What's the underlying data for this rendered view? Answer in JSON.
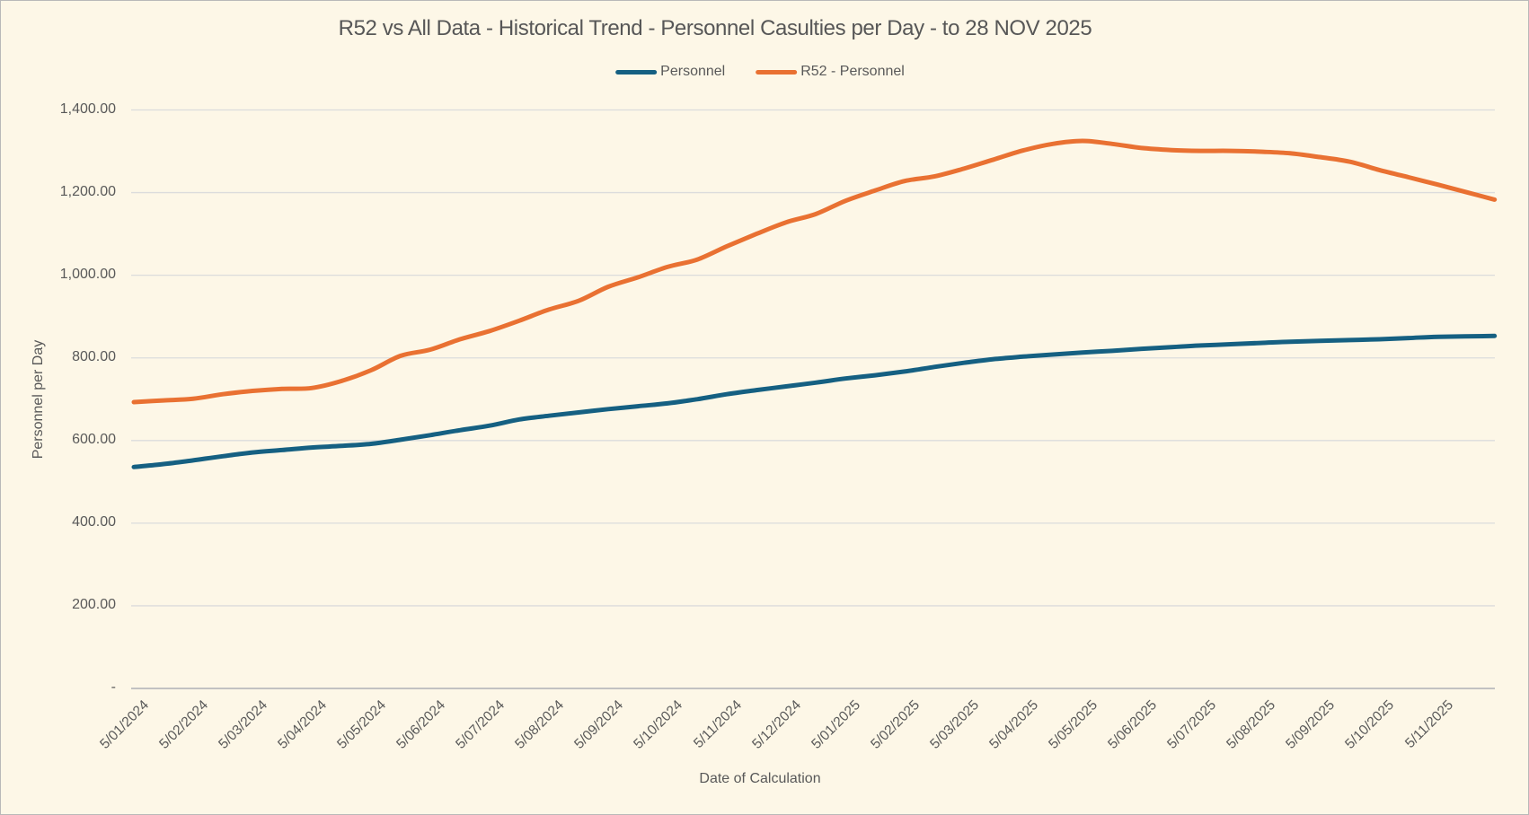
{
  "window": {
    "background_color": "#FDF7E7",
    "gridline_color": "#DCDCDC",
    "axis_line_color": "#C2C2C2",
    "text_color": "#595959"
  },
  "chart_data": {
    "type": "line",
    "title": "R52 vs All Data - Historical Trend - Personnel Casulties per Day - to 28 NOV 2025",
    "xlabel": "Date of Calculation",
    "ylabel": "Personnel per Day",
    "ylim": [
      0,
      1400
    ],
    "grid": "horizontal",
    "legend_position": "top-center",
    "y_ticks": [
      {
        "value": 0,
        "label": "-"
      },
      {
        "value": 200,
        "label": "200.00"
      },
      {
        "value": 400,
        "label": "400.00"
      },
      {
        "value": 600,
        "label": "600.00"
      },
      {
        "value": 800,
        "label": "800.00"
      },
      {
        "value": 1000,
        "label": "1,000.00"
      },
      {
        "value": 1200,
        "label": "1,200.00"
      },
      {
        "value": 1400,
        "label": "1,400.00"
      }
    ],
    "categories": [
      "5/01/2024",
      "5/02/2024",
      "5/03/2024",
      "5/04/2024",
      "5/05/2024",
      "5/06/2024",
      "5/07/2024",
      "5/08/2024",
      "5/09/2024",
      "5/10/2024",
      "5/11/2024",
      "5/12/2024",
      "5/01/2025",
      "5/02/2025",
      "5/03/2025",
      "5/04/2025",
      "5/05/2025",
      "5/06/2025",
      "5/07/2025",
      "5/08/2025",
      "5/09/2025",
      "5/10/2025",
      "5/11/2025"
    ],
    "series": [
      {
        "name": "Personnel",
        "color": "#156082",
        "points": [
          [
            0,
            536
          ],
          [
            0.5,
            543
          ],
          [
            1,
            552
          ],
          [
            1.5,
            562
          ],
          [
            2,
            571
          ],
          [
            2.5,
            577
          ],
          [
            3,
            583
          ],
          [
            3.5,
            587
          ],
          [
            4,
            592
          ],
          [
            4.5,
            602
          ],
          [
            5,
            613
          ],
          [
            5.5,
            625
          ],
          [
            6,
            636
          ],
          [
            6.5,
            651
          ],
          [
            7,
            660
          ],
          [
            7.5,
            668
          ],
          [
            8,
            676
          ],
          [
            8.5,
            683
          ],
          [
            9,
            690
          ],
          [
            9.5,
            700
          ],
          [
            10,
            712
          ],
          [
            10.5,
            722
          ],
          [
            11,
            731
          ],
          [
            11.5,
            740
          ],
          [
            12,
            750
          ],
          [
            12.5,
            758
          ],
          [
            13,
            767
          ],
          [
            13.5,
            778
          ],
          [
            14,
            788
          ],
          [
            14.5,
            797
          ],
          [
            15,
            803
          ],
          [
            15.5,
            808
          ],
          [
            16,
            813
          ],
          [
            16.5,
            817
          ],
          [
            17,
            822
          ],
          [
            17.5,
            826
          ],
          [
            18,
            830
          ],
          [
            18.5,
            833
          ],
          [
            19,
            836
          ],
          [
            19.5,
            839
          ],
          [
            20,
            841
          ],
          [
            20.5,
            843
          ],
          [
            21,
            845
          ],
          [
            21.5,
            848
          ],
          [
            22,
            851
          ],
          [
            22.95,
            853
          ]
        ]
      },
      {
        "name": "R52 - Personnel",
        "color": "#E97132",
        "points": [
          [
            0,
            693
          ],
          [
            0.5,
            697
          ],
          [
            1,
            701
          ],
          [
            1.5,
            712
          ],
          [
            2,
            720
          ],
          [
            2.5,
            725
          ],
          [
            3,
            727
          ],
          [
            3.5,
            744
          ],
          [
            4,
            770
          ],
          [
            4.5,
            805
          ],
          [
            5,
            820
          ],
          [
            5.5,
            845
          ],
          [
            6,
            865
          ],
          [
            6.5,
            890
          ],
          [
            7,
            917
          ],
          [
            7.5,
            938
          ],
          [
            8,
            972
          ],
          [
            8.5,
            995
          ],
          [
            9,
            1020
          ],
          [
            9.5,
            1038
          ],
          [
            10,
            1070
          ],
          [
            10.5,
            1100
          ],
          [
            11,
            1128
          ],
          [
            11.5,
            1148
          ],
          [
            12,
            1180
          ],
          [
            12.5,
            1205
          ],
          [
            13,
            1228
          ],
          [
            13.5,
            1239
          ],
          [
            14,
            1258
          ],
          [
            14.5,
            1280
          ],
          [
            15,
            1302
          ],
          [
            15.5,
            1318
          ],
          [
            16,
            1325
          ],
          [
            16.5,
            1318
          ],
          [
            17,
            1308
          ],
          [
            17.5,
            1303
          ],
          [
            18,
            1301
          ],
          [
            18.5,
            1301
          ],
          [
            19,
            1299
          ],
          [
            19.5,
            1295
          ],
          [
            20,
            1286
          ],
          [
            20.5,
            1275
          ],
          [
            21,
            1255
          ],
          [
            21.5,
            1237
          ],
          [
            22,
            1219
          ],
          [
            22.5,
            1200
          ],
          [
            22.95,
            1183
          ]
        ]
      }
    ]
  }
}
